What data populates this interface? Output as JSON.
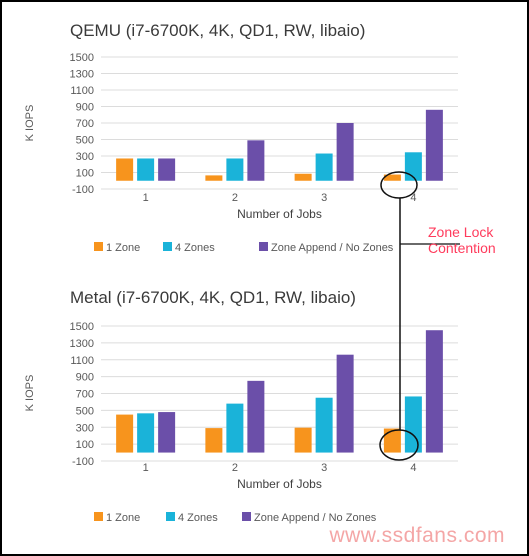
{
  "annotation": {
    "label_line1": "Zone Lock",
    "label_line2": "Contention",
    "color": "#ff3b5c"
  },
  "watermark": "www.ssdfans.com",
  "colors": {
    "1 Zone": "#f7941d",
    "4 Zones": "#1ab3d9",
    "Zone Append / No Zones": "#6b4fa9"
  },
  "chart_data": [
    {
      "type": "bar",
      "title": "QEMU (i7-6700K, 4K, QD1, RW, libaio)",
      "xlabel": "Number of Jobs",
      "ylabel": "K IOPS",
      "ylim": [
        -100,
        1500
      ],
      "yticks": [
        "1500",
        "1300",
        "1100",
        "900",
        "700",
        "500",
        "300",
        "100",
        "-100"
      ],
      "categories": [
        "1",
        "2",
        "3",
        "4"
      ],
      "series": [
        {
          "name": "1 Zone",
          "values": [
            270,
            65,
            85,
            75
          ]
        },
        {
          "name": "4 Zones",
          "values": [
            270,
            270,
            330,
            345
          ]
        },
        {
          "name": "Zone Append / No Zones",
          "values": [
            270,
            490,
            700,
            860
          ]
        }
      ],
      "legend": "bottom",
      "grid": true
    },
    {
      "type": "bar",
      "title": "Metal (i7-6700K, 4K, QD1, RW, libaio)",
      "xlabel": "Number of Jobs",
      "ylabel": "K IOPS",
      "ylim": [
        -100,
        1500
      ],
      "yticks": [
        "1500",
        "1300",
        "1100",
        "900",
        "700",
        "500",
        "300",
        "100",
        "-100"
      ],
      "categories": [
        "1",
        "2",
        "3",
        "4"
      ],
      "series": [
        {
          "name": "1 Zone",
          "values": [
            450,
            290,
            295,
            285
          ]
        },
        {
          "name": "4 Zones",
          "values": [
            465,
            580,
            650,
            665
          ]
        },
        {
          "name": "Zone Append / No Zones",
          "values": [
            480,
            850,
            1160,
            1450
          ]
        }
      ],
      "legend": "bottom",
      "grid": true
    }
  ]
}
